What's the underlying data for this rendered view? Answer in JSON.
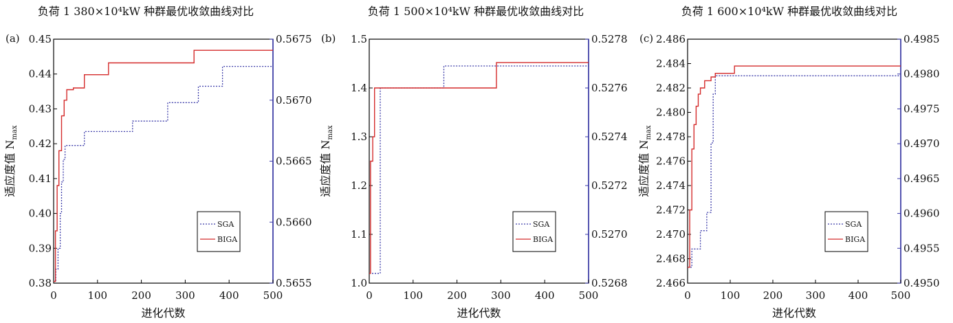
{
  "chart_data": [
    {
      "type": "line",
      "panel_tag": "(a)",
      "title": "负荷 1 380×10⁴kW 种群最优收敛曲线对比",
      "xlabel": "进化代数",
      "ylabel": "适应度值 N",
      "ylabel_sub": "max",
      "xlim": [
        0,
        500
      ],
      "ylim": [
        0.38,
        0.45
      ],
      "ylim_right": [
        0.5655,
        0.5675
      ],
      "xticks": [
        "0",
        "100",
        "200",
        "300",
        "400",
        "500"
      ],
      "yticks_left": [
        "0.38",
        "0.39",
        "0.40",
        "0.41",
        "0.42",
        "0.43",
        "0.44",
        "0.45"
      ],
      "yticks_right": [
        "0.5655",
        "0.5660",
        "0.5665",
        "0.5670",
        "0.5675"
      ],
      "legend": [
        "SGA",
        "BIGA"
      ],
      "legend_position": "lower-right",
      "grid": false,
      "series": [
        {
          "name": "SGA",
          "color": "#3a3aa8",
          "style": "dotted",
          "x": [
            0,
            5,
            5,
            10,
            10,
            15,
            15,
            18,
            18,
            22,
            22,
            26,
            26,
            70,
            70,
            180,
            180,
            260,
            260,
            330,
            330,
            385,
            385,
            500
          ],
          "y": [
            0.3805,
            0.3805,
            0.384,
            0.384,
            0.39,
            0.39,
            0.4,
            0.4,
            0.409,
            0.409,
            0.4155,
            0.4155,
            0.4195,
            0.4195,
            0.4235,
            0.4235,
            0.4265,
            0.4265,
            0.4318,
            0.4318,
            0.4365,
            0.4365,
            0.4422,
            0.4422
          ]
        },
        {
          "name": "BIGA",
          "color": "#d42a2a",
          "style": "solid",
          "x": [
            0,
            4,
            4,
            8,
            8,
            12,
            12,
            18,
            18,
            24,
            24,
            30,
            30,
            45,
            45,
            70,
            70,
            125,
            125,
            320,
            320,
            500
          ],
          "y": [
            0.3805,
            0.3805,
            0.395,
            0.395,
            0.408,
            0.408,
            0.418,
            0.418,
            0.428,
            0.428,
            0.4325,
            0.4325,
            0.4355,
            0.4355,
            0.436,
            0.436,
            0.4398,
            0.4398,
            0.4432,
            0.4432,
            0.4468,
            0.4468
          ]
        }
      ]
    },
    {
      "type": "line",
      "panel_tag": "(b)",
      "title": "负荷 1 500×10⁴kW 种群最优收敛曲线对比",
      "xlabel": "进化代数",
      "ylabel": "适应度值 N",
      "ylabel_sub": "max",
      "xlim": [
        0,
        500
      ],
      "ylim": [
        1.0,
        1.5
      ],
      "ylim_right": [
        0.5268,
        0.5278
      ],
      "xticks": [
        "0",
        "100",
        "200",
        "300",
        "400",
        "500"
      ],
      "yticks_left": [
        "1.0",
        "1.1",
        "1.2",
        "1.3",
        "1.4",
        "1.5"
      ],
      "yticks_right": [
        "0.5268",
        "0.5270",
        "0.5272",
        "0.5274",
        "0.5276",
        "0.5278"
      ],
      "legend": [
        "SGA",
        "BIGA"
      ],
      "legend_position": "lower-right",
      "grid": false,
      "series": [
        {
          "name": "SGA",
          "color": "#3a3aa8",
          "style": "dotted",
          "x": [
            0,
            25,
            25,
            170,
            170,
            500
          ],
          "y": [
            1.02,
            1.02,
            1.4,
            1.4,
            1.445,
            1.445
          ]
        },
        {
          "name": "BIGA",
          "color": "#d42a2a",
          "style": "solid",
          "x": [
            0,
            3,
            3,
            8,
            8,
            12,
            12,
            290,
            290,
            500
          ],
          "y": [
            1.02,
            1.02,
            1.25,
            1.25,
            1.3,
            1.3,
            1.4,
            1.4,
            1.452,
            1.452
          ]
        }
      ]
    },
    {
      "type": "line",
      "panel_tag": "(c)",
      "title": "负荷 1 600×10⁴kW 种群最优收敛曲线对比",
      "xlabel": "进化代数",
      "ylabel": "适应度值 N",
      "ylabel_sub": "max",
      "xlim": [
        0,
        500
      ],
      "ylim": [
        2.466,
        2.486
      ],
      "ylim_right": [
        0.495,
        0.4985
      ],
      "xticks": [
        "0",
        "100",
        "200",
        "300",
        "400",
        "500"
      ],
      "yticks_left": [
        "2.466",
        "2.468",
        "2.470",
        "2.472",
        "2.474",
        "2.476",
        "2.478",
        "2.480",
        "2.482",
        "2.484",
        "2.486"
      ],
      "yticks_right": [
        "0.4950",
        "0.4955",
        "0.4960",
        "0.4965",
        "0.4970",
        "0.4975",
        "0.4980",
        "0.4985"
      ],
      "legend": [
        "SGA",
        "BIGA"
      ],
      "legend_position": "lower-right",
      "grid": false,
      "series": [
        {
          "name": "SGA",
          "color": "#3a3aa8",
          "style": "dotted",
          "x": [
            0,
            10,
            10,
            30,
            30,
            45,
            45,
            55,
            55,
            60,
            60,
            65,
            65,
            500
          ],
          "y": [
            2.4673,
            2.4673,
            2.4688,
            2.4688,
            2.4703,
            2.4703,
            2.4718,
            2.4718,
            2.4775,
            2.4775,
            2.4815,
            2.4815,
            2.483,
            2.483
          ]
        },
        {
          "name": "BIGA",
          "color": "#d42a2a",
          "style": "solid",
          "x": [
            0,
            5,
            5,
            10,
            10,
            15,
            15,
            20,
            20,
            25,
            25,
            30,
            30,
            40,
            40,
            55,
            55,
            65,
            65,
            110,
            110,
            500
          ],
          "y": [
            2.4673,
            2.4673,
            2.472,
            2.472,
            2.477,
            2.477,
            2.479,
            2.479,
            2.4805,
            2.4805,
            2.4815,
            2.4815,
            2.482,
            2.482,
            2.4826,
            2.4826,
            2.4829,
            2.4829,
            2.4832,
            2.4832,
            2.4838,
            2.4838
          ]
        }
      ]
    }
  ]
}
